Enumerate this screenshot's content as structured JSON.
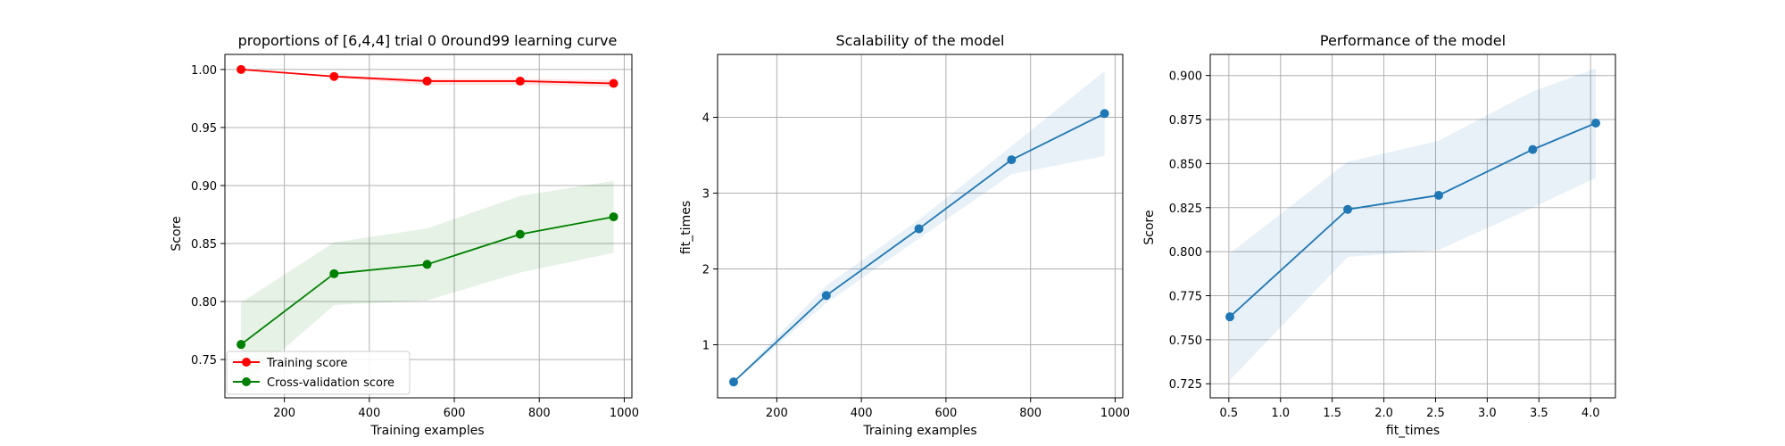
{
  "chart_data": [
    {
      "type": "line",
      "title": "proportions of [6,4,4] trial 0 0round99 learning curve",
      "xlabel": "Training examples",
      "ylabel": "Score",
      "xlim": [
        60,
        1018
      ],
      "ylim": [
        0.717,
        1.013
      ],
      "xticks": [
        200,
        400,
        600,
        800,
        1000
      ],
      "xtick_labels": [
        "200",
        "400",
        "600",
        "800",
        "1000"
      ],
      "yticks": [
        0.75,
        0.8,
        0.85,
        0.9,
        0.95,
        1.0
      ],
      "ytick_labels": [
        "0.75",
        "0.80",
        "0.85",
        "0.90",
        "0.95",
        "1.00"
      ],
      "grid": true,
      "legend": "lower-left",
      "series": [
        {
          "name": "Training score",
          "color": "#ff0000",
          "x": [
            98,
            317,
            536,
            755,
            975
          ],
          "y": [
            1.0,
            0.994,
            0.99,
            0.99,
            0.988
          ],
          "band_low": [
            1.0,
            0.993,
            0.987,
            0.987,
            0.985
          ],
          "band_high": [
            1.0,
            0.995,
            0.992,
            0.992,
            0.991
          ]
        },
        {
          "name": "Cross-validation score",
          "color": "#008000",
          "x": [
            98,
            317,
            536,
            755,
            975
          ],
          "y": [
            0.763,
            0.824,
            0.832,
            0.858,
            0.873
          ],
          "band_low": [
            0.727,
            0.797,
            0.801,
            0.825,
            0.842
          ],
          "band_high": [
            0.799,
            0.851,
            0.863,
            0.891,
            0.904
          ]
        }
      ]
    },
    {
      "type": "line",
      "title": "Scalability of the model",
      "xlabel": "Training examples",
      "ylabel": "fit_times",
      "xlim": [
        60,
        1018
      ],
      "ylim": [
        0.3,
        4.83
      ],
      "xticks": [
        200,
        400,
        600,
        800,
        1000
      ],
      "xtick_labels": [
        "200",
        "400",
        "600",
        "800",
        "1000"
      ],
      "yticks": [
        1,
        2,
        3,
        4
      ],
      "ytick_labels": [
        "1",
        "2",
        "3",
        "4"
      ],
      "grid": true,
      "series": [
        {
          "color": "#1f77b4",
          "x": [
            98,
            317,
            536,
            755,
            975
          ],
          "y": [
            0.51,
            1.65,
            2.53,
            3.44,
            4.05
          ],
          "band_low": [
            0.5,
            1.55,
            2.4,
            3.25,
            3.49
          ],
          "band_high": [
            0.52,
            1.78,
            2.65,
            3.62,
            4.61
          ]
        }
      ]
    },
    {
      "type": "line",
      "title": "Performance of the model",
      "xlabel": "fit_times",
      "ylabel": "Score",
      "xlim": [
        0.32,
        4.24
      ],
      "ylim": [
        0.717,
        0.912
      ],
      "xticks": [
        0.5,
        1.0,
        1.5,
        2.0,
        2.5,
        3.0,
        3.5,
        4.0
      ],
      "xtick_labels": [
        "0.5",
        "1.0",
        "1.5",
        "2.0",
        "2.5",
        "3.0",
        "3.5",
        "4.0"
      ],
      "yticks": [
        0.725,
        0.75,
        0.775,
        0.8,
        0.825,
        0.85,
        0.875,
        0.9
      ],
      "ytick_labels": [
        "0.725",
        "0.750",
        "0.775",
        "0.800",
        "0.825",
        "0.850",
        "0.875",
        "0.900"
      ],
      "grid": true,
      "series": [
        {
          "color": "#1f77b4",
          "x": [
            0.51,
            1.65,
            2.53,
            3.44,
            4.05
          ],
          "y": [
            0.763,
            0.824,
            0.832,
            0.858,
            0.873
          ],
          "band_low": [
            0.727,
            0.797,
            0.801,
            0.825,
            0.842
          ],
          "band_high": [
            0.799,
            0.851,
            0.863,
            0.891,
            0.904
          ]
        }
      ]
    }
  ]
}
